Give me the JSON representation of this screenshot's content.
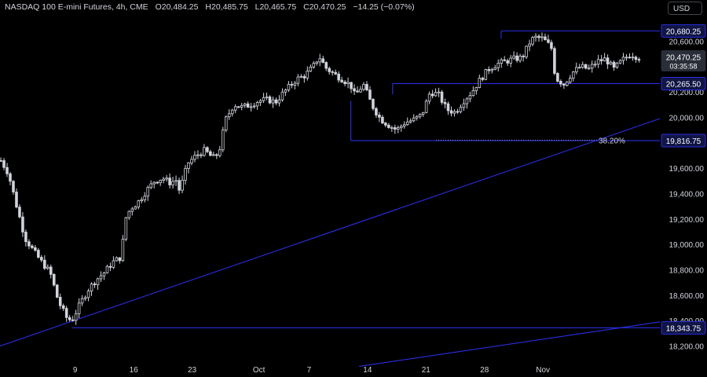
{
  "header": {
    "symbol": "NASDAQ 100 E-mini Futures, 4h, CME",
    "open_label": "O",
    "open": "20,484.25",
    "high_label": "H",
    "high": "20,485.75",
    "low_label": "L",
    "low": "20,465.75",
    "close_label": "C",
    "close": "20,470.25",
    "change": "−14.25 (−0.07%)"
  },
  "currency_button": "USD",
  "colors": {
    "background": "#000000",
    "candle": "#d1d4dc",
    "level_line": "#2a2ee0",
    "axis_text": "#d1d4dc"
  },
  "chart_data": {
    "type": "candlestick",
    "title": "",
    "xlabel": "",
    "ylabel": "",
    "ylim": [
      18080,
      20800
    ],
    "y_ticks": [
      "18,200.00",
      "18,400.00",
      "18,600.00",
      "18,800.00",
      "19,000.00",
      "19,200.00",
      "19,400.00",
      "19,600.00",
      "19,800.00",
      "20,000.00",
      "20,200.00",
      "20,400.00",
      "20,600.00"
    ],
    "x_ticks": [
      "9",
      "16",
      "23",
      "Oct",
      "7",
      "14",
      "21",
      "28",
      "Nov"
    ],
    "x_tick_values": [
      9,
      16,
      23,
      31,
      37,
      44,
      51,
      58,
      65
    ],
    "xlim": [
      0,
      79
    ],
    "close_path": [
      [
        0.1,
        19660
      ],
      [
        1,
        19560
      ],
      [
        2,
        19300
      ],
      [
        3,
        19050
      ],
      [
        4,
        18950
      ],
      [
        5,
        18860
      ],
      [
        6,
        18780
      ],
      [
        7,
        18550
      ],
      [
        8,
        18420
      ],
      [
        8.6,
        18400
      ],
      [
        9.5,
        18520
      ],
      [
        10.5,
        18640
      ],
      [
        11.5,
        18720
      ],
      [
        12.5,
        18780
      ],
      [
        13.5,
        18860
      ],
      [
        14.5,
        18900
      ],
      [
        15,
        19200
      ],
      [
        15.6,
        19280
      ],
      [
        16.5,
        19330
      ],
      [
        17.5,
        19420
      ],
      [
        18.5,
        19500
      ],
      [
        19.5,
        19520
      ],
      [
        20.5,
        19480
      ],
      [
        21,
        19520
      ],
      [
        21.5,
        19420
      ],
      [
        22.5,
        19640
      ],
      [
        23.5,
        19700
      ],
      [
        24.5,
        19740
      ],
      [
        25.5,
        19680
      ],
      [
        26.2,
        19720
      ],
      [
        27,
        19980
      ],
      [
        28,
        20100
      ],
      [
        29,
        20080
      ],
      [
        30,
        20100
      ],
      [
        31,
        20130
      ],
      [
        32,
        20140
      ],
      [
        33,
        20120
      ],
      [
        34,
        20200
      ],
      [
        35.5,
        20300
      ],
      [
        36.5,
        20330
      ],
      [
        37.5,
        20400
      ],
      [
        38.2,
        20480
      ],
      [
        39,
        20390
      ],
      [
        40,
        20340
      ],
      [
        41,
        20300
      ],
      [
        42,
        20250
      ],
      [
        42.5,
        20170
      ],
      [
        43.5,
        20260
      ],
      [
        44.5,
        20100
      ],
      [
        45.5,
        19990
      ],
      [
        46.5,
        19940
      ],
      [
        47.5,
        19900
      ],
      [
        48.5,
        19960
      ],
      [
        49.5,
        19980
      ],
      [
        50.5,
        20020
      ],
      [
        51.5,
        20200
      ],
      [
        52.5,
        20180
      ],
      [
        53.5,
        20060
      ],
      [
        54.5,
        20040
      ],
      [
        55.5,
        20130
      ],
      [
        56.5,
        20200
      ],
      [
        57.5,
        20300
      ],
      [
        58.5,
        20380
      ],
      [
        59.5,
        20420
      ],
      [
        60.5,
        20440
      ],
      [
        61.5,
        20460
      ],
      [
        62.5,
        20470
      ],
      [
        63.5,
        20600
      ],
      [
        64,
        20630
      ],
      [
        65,
        20620
      ],
      [
        66,
        20550
      ],
      [
        66.5,
        20310
      ],
      [
        67.5,
        20260
      ],
      [
        68.5,
        20350
      ],
      [
        69.5,
        20400
      ],
      [
        70.5,
        20380
      ],
      [
        71.5,
        20440
      ],
      [
        72.5,
        20460
      ],
      [
        73.5,
        20380
      ],
      [
        74.5,
        20450
      ],
      [
        75.5,
        20500
      ],
      [
        76.5,
        20470
      ]
    ],
    "levels": [
      {
        "label": "20,680.25",
        "value": 20680.25
      },
      {
        "label": "20,265.50",
        "value": 20265.5
      },
      {
        "label": "19,816.75",
        "value": 19816.75
      },
      {
        "label": "18,343.75",
        "value": 18343.75
      }
    ],
    "last_price": {
      "label": "20,470.25",
      "countdown": "03:35:58",
      "value": 20470.25
    },
    "fib": {
      "label": "38.20%",
      "value": 19820
    },
    "trendlines": [
      {
        "x1": 0,
        "y1": 18200,
        "x2": 79,
        "y2": 19990
      },
      {
        "x1": 43,
        "y1": 18040,
        "x2": 79,
        "y2": 18390
      }
    ]
  }
}
